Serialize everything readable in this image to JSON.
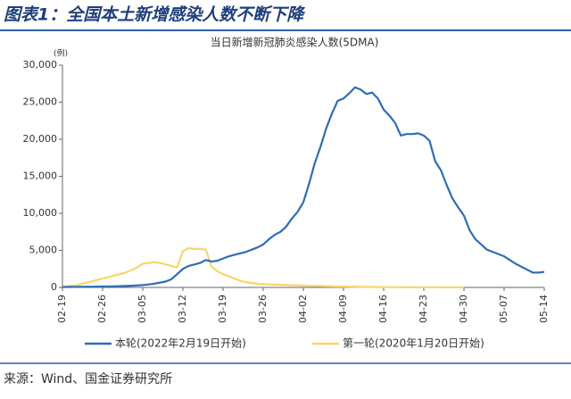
{
  "header": {
    "title": "图表1：全国本土新增感染人数不断下降"
  },
  "source": "来源：Wind、国金证券研究所",
  "chart_data": {
    "type": "line",
    "title": "当日新增新冠肺炎感染人数(5DMA)",
    "y_label": "(例)",
    "categories": [
      "02-19",
      null,
      null,
      null,
      null,
      null,
      null,
      "02-26",
      null,
      null,
      null,
      null,
      null,
      null,
      "03-05",
      null,
      null,
      null,
      null,
      null,
      null,
      "03-12",
      null,
      null,
      null,
      null,
      null,
      null,
      "03-19",
      null,
      null,
      null,
      null,
      null,
      null,
      "03-26",
      null,
      null,
      null,
      null,
      null,
      null,
      "04-02",
      null,
      null,
      null,
      null,
      null,
      null,
      "04-09",
      null,
      null,
      null,
      null,
      null,
      null,
      "04-16",
      null,
      null,
      null,
      null,
      null,
      null,
      "04-23",
      null,
      null,
      null,
      null,
      null,
      null,
      "04-30",
      null,
      null,
      null,
      null,
      null,
      null,
      "05-07",
      null,
      null,
      null,
      null,
      null,
      null,
      "05-14"
    ],
    "series": [
      {
        "name": "本轮(2022年2月19日开始)",
        "color": "#2f6db5",
        "values": [
          50,
          60,
          70,
          80,
          90,
          100,
          110,
          120,
          130,
          150,
          170,
          200,
          230,
          270,
          320,
          400,
          500,
          650,
          800,
          1100,
          1800,
          2500,
          2900,
          3100,
          3300,
          3700,
          3500,
          3600,
          3900,
          4200,
          4400,
          4600,
          4800,
          5100,
          5400,
          5800,
          6500,
          7100,
          7500,
          8200,
          9300,
          10200,
          11500,
          14000,
          16800,
          19000,
          21500,
          23500,
          25200,
          25500,
          26200,
          27000,
          26700,
          26100,
          26300,
          25500,
          24000,
          23200,
          22200,
          20500,
          20700,
          20700,
          20800,
          20500,
          19800,
          17000,
          15800,
          13800,
          12000,
          10800,
          9700,
          7700,
          6500,
          5800,
          5100,
          4800,
          4500,
          4200,
          3700,
          3200,
          2800,
          2400,
          2000,
          2000,
          2100
        ]
      },
      {
        "name": "第一轮(2020年1月20日开始)",
        "color": "#f6d66b",
        "values": [
          100,
          150,
          250,
          400,
          600,
          800,
          1000,
          1200,
          1400,
          1600,
          1800,
          2000,
          2300,
          2700,
          3200,
          3300,
          3400,
          3300,
          3100,
          2900,
          2700,
          4900,
          5300,
          5200,
          5200,
          5100,
          2800,
          2200,
          1800,
          1500,
          1200,
          900,
          700,
          600,
          500,
          450,
          400,
          380,
          350,
          330,
          300,
          280,
          250,
          220,
          200,
          180,
          160,
          150,
          130,
          120,
          100,
          90,
          80,
          70,
          60,
          50,
          50,
          40,
          40,
          30,
          30,
          30,
          20,
          20,
          20,
          20,
          10,
          10,
          10,
          10,
          10,
          null,
          null,
          null,
          null,
          null,
          null,
          null,
          null,
          null,
          null,
          null,
          null,
          null,
          null
        ]
      }
    ],
    "ylim": [
      0,
      30000
    ],
    "yticks": [
      0,
      {
        "value": 5000,
        "label": "5,000"
      },
      {
        "value": 10000,
        "label": "10,000"
      },
      {
        "value": 15000,
        "label": "15,000"
      },
      {
        "value": 20000,
        "label": "20,000"
      },
      {
        "value": 25000,
        "label": "25,000"
      },
      {
        "value": 30000,
        "label": "30,000"
      }
    ],
    "legend": "bottom"
  }
}
